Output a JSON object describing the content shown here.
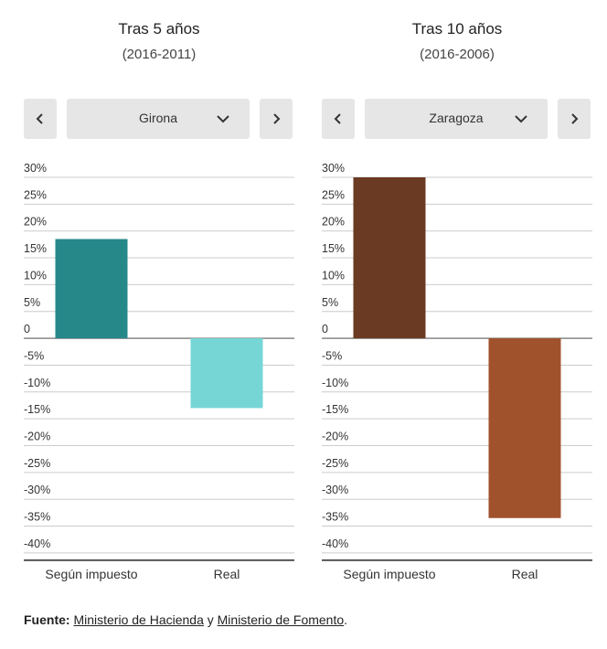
{
  "panels": [
    {
      "title": "Tras 5 años",
      "subtitle": "(2016-2011)",
      "selected_city": "Girona",
      "prev_icon": "chevron-left-icon",
      "next_icon": "chevron-right-icon",
      "dropdown_icon": "chevron-down-icon"
    },
    {
      "title": "Tras 10 años",
      "subtitle": "(2016-2006)",
      "selected_city": "Zaragoza",
      "prev_icon": "chevron-left-icon",
      "next_icon": "chevron-right-icon",
      "dropdown_icon": "chevron-down-icon"
    }
  ],
  "chart_data": [
    {
      "type": "bar",
      "categories": [
        "Según impuesto",
        "Real"
      ],
      "values": [
        18.5,
        -13
      ],
      "colors": [
        "#27888a",
        "#76d6d6"
      ],
      "yticks": [
        30,
        25,
        20,
        15,
        10,
        5,
        0,
        -5,
        -10,
        -15,
        -20,
        -25,
        -30,
        -35,
        -40
      ],
      "tick_labels": [
        "30%",
        "25%",
        "20%",
        "15%",
        "10%",
        "5%",
        "0",
        "-5%",
        "-10%",
        "-15%",
        "-20%",
        "-25%",
        "-30%",
        "-35%",
        "-40%"
      ],
      "ylim": [
        -40,
        30
      ],
      "grid": true
    },
    {
      "type": "bar",
      "categories": [
        "Según impuesto",
        "Real"
      ],
      "values": [
        30,
        -33.5
      ],
      "colors": [
        "#6b3a22",
        "#a0522d"
      ],
      "yticks": [
        30,
        25,
        20,
        15,
        10,
        5,
        0,
        -5,
        -10,
        -15,
        -20,
        -25,
        -30,
        -35,
        -40
      ],
      "tick_labels": [
        "30%",
        "25%",
        "20%",
        "15%",
        "10%",
        "5%",
        "0",
        "-5%",
        "-10%",
        "-15%",
        "-20%",
        "-25%",
        "-30%",
        "-35%",
        "-40%"
      ],
      "ylim": [
        -40,
        30
      ],
      "grid": true
    }
  ],
  "source": {
    "label": "Fuente:",
    "link1": "Ministerio de Hacienda",
    "connector": " y ",
    "link2": "Ministerio de Fomento",
    "end": "."
  }
}
